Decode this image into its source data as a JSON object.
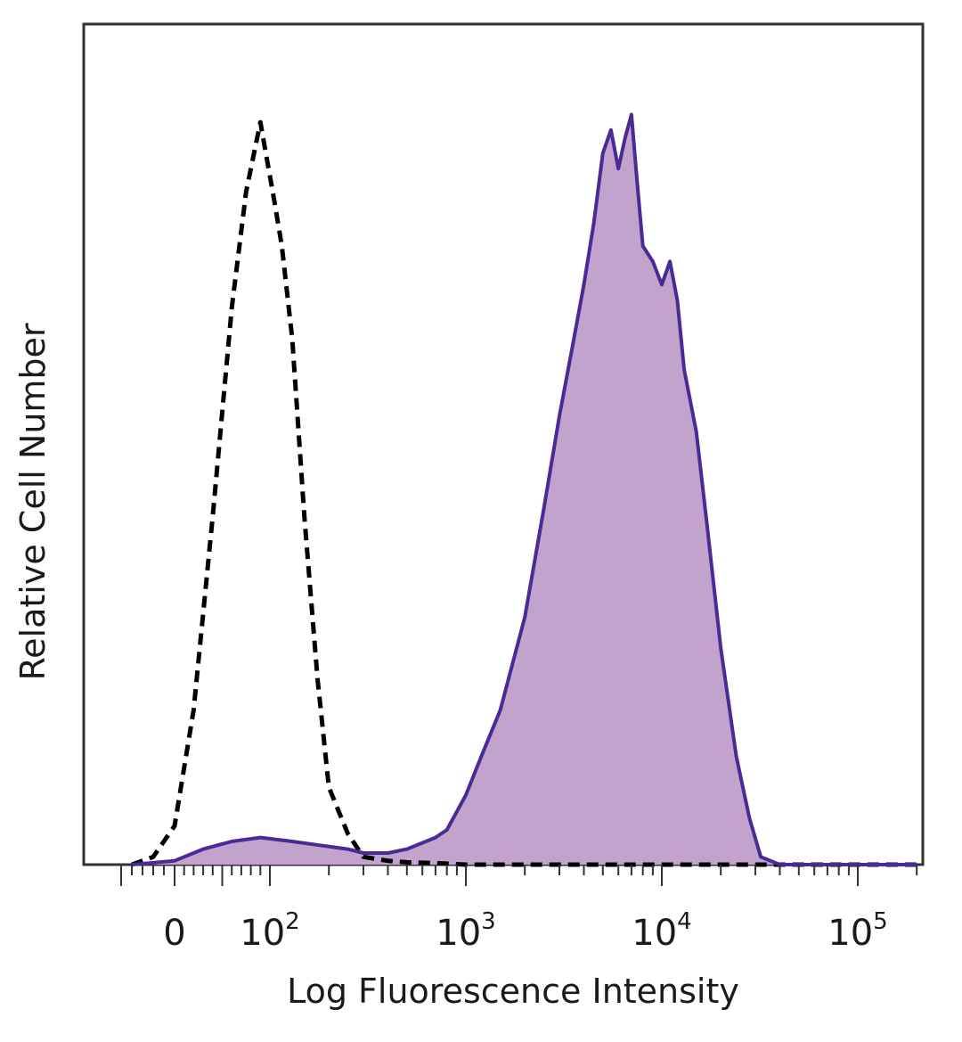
{
  "chart_data": {
    "type": "area",
    "xlabel": "Log Fluorescence Intensity",
    "ylabel": "Relative Cell Number",
    "x_scale": "biexponential",
    "xlim": [
      -60,
      200000
    ],
    "ylim": [
      0,
      1.0
    ],
    "grid": false,
    "legend": "none",
    "tick_labels": [
      {
        "value": 0,
        "base": "0",
        "exp": ""
      },
      {
        "value": 100,
        "base": "10",
        "exp": "2"
      },
      {
        "value": 1000,
        "base": "10",
        "exp": "3"
      },
      {
        "value": 10000,
        "base": "10",
        "exp": "4"
      },
      {
        "value": 100000,
        "base": "10",
        "exp": "5"
      }
    ],
    "series": [
      {
        "style": "dashed",
        "color": "#000000",
        "fill": "none",
        "x": [
          -40,
          -20,
          0,
          20,
          40,
          60,
          75,
          90,
          105,
          115,
          130,
          150,
          175,
          200,
          250,
          300,
          400,
          500,
          700,
          1000,
          3000,
          10000,
          100000,
          200000
        ],
        "y": [
          0,
          0.01,
          0.05,
          0.2,
          0.45,
          0.72,
          0.87,
          0.96,
          0.86,
          0.8,
          0.68,
          0.45,
          0.24,
          0.1,
          0.04,
          0.01,
          0.005,
          0.003,
          0.002,
          0,
          0,
          0,
          0,
          0
        ]
      },
      {
        "style": "solid",
        "color": "#4a2a96",
        "fill": "#c2a3cc",
        "x": [
          -40,
          0,
          30,
          60,
          90,
          130,
          180,
          250,
          300,
          400,
          500,
          700,
          800,
          1000,
          1200,
          1500,
          2000,
          2500,
          3000,
          3500,
          4000,
          4500,
          5000,
          5500,
          6000,
          6500,
          7000,
          7500,
          8000,
          9000,
          10000,
          11000,
          12000,
          13000,
          15000,
          17000,
          20000,
          24000,
          28000,
          32000,
          40000,
          100000,
          200000
        ],
        "y": [
          0,
          0.005,
          0.02,
          0.03,
          0.035,
          0.03,
          0.025,
          0.02,
          0.015,
          0.015,
          0.02,
          0.035,
          0.045,
          0.09,
          0.14,
          0.2,
          0.32,
          0.46,
          0.58,
          0.67,
          0.75,
          0.83,
          0.92,
          0.95,
          0.9,
          0.94,
          0.97,
          0.88,
          0.8,
          0.78,
          0.75,
          0.78,
          0.73,
          0.64,
          0.56,
          0.44,
          0.28,
          0.14,
          0.06,
          0.01,
          0,
          0,
          0
        ]
      }
    ]
  }
}
